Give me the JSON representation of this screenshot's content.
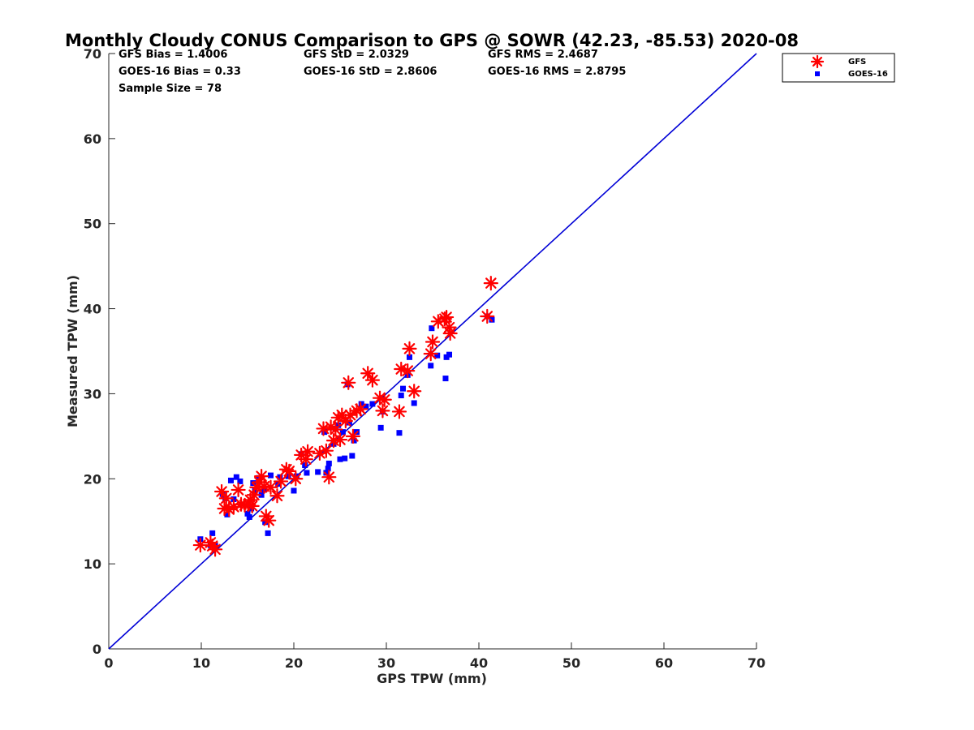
{
  "chart_data": {
    "type": "scatter",
    "title": "Monthly Cloudy CONUS Comparison to GPS @ SOWR (42.23, -85.53) 2020-08",
    "xlabel": "GPS TPW (mm)",
    "ylabel": "Measured TPW (mm)",
    "xlim": [
      0,
      70
    ],
    "ylim": [
      0,
      70
    ],
    "xticks": [
      "0",
      "10",
      "20",
      "30",
      "40",
      "50",
      "60",
      "70"
    ],
    "yticks": [
      "0",
      "10",
      "20",
      "30",
      "40",
      "50",
      "60",
      "70"
    ],
    "grid": false,
    "legend_position": "top-right (outside plot)",
    "stats": {
      "gfs_bias": "GFS Bias = 1.4006",
      "gfs_std": "GFS StD = 2.0329",
      "gfs_rms": "GFS RMS = 2.4687",
      "goes_bias": "GOES-16 Bias = 0.33",
      "goes_std": "GOES-16 StD = 2.8606",
      "goes_rms": "GOES-16 RMS = 2.8795",
      "sample_size": "Sample Size = 78"
    },
    "reference_line": {
      "x": [
        0,
        70
      ],
      "y": [
        0,
        70
      ],
      "color": "#0000d6"
    },
    "series": [
      {
        "name": "GFS",
        "marker": "asterisk",
        "color": "#ff0000",
        "points": [
          [
            9.9,
            12.2
          ],
          [
            11.0,
            12.5
          ],
          [
            11.2,
            12.1
          ],
          [
            11.5,
            11.7
          ],
          [
            12.2,
            18.5
          ],
          [
            12.5,
            16.5
          ],
          [
            12.7,
            17.7
          ],
          [
            13.0,
            16.4
          ],
          [
            13.5,
            16.7
          ],
          [
            14.0,
            18.7
          ],
          [
            14.3,
            17.0
          ],
          [
            14.7,
            16.9
          ],
          [
            15.1,
            17.0
          ],
          [
            15.3,
            17.5
          ],
          [
            15.5,
            16.8
          ],
          [
            15.7,
            18.1
          ],
          [
            16.0,
            19.0
          ],
          [
            16.3,
            19.6
          ],
          [
            16.5,
            20.3
          ],
          [
            16.8,
            19.1
          ],
          [
            17.0,
            15.6
          ],
          [
            17.3,
            15.1
          ],
          [
            17.5,
            19.0
          ],
          [
            18.2,
            18.0
          ],
          [
            18.6,
            19.7
          ],
          [
            19.2,
            21.1
          ],
          [
            19.5,
            20.9
          ],
          [
            20.2,
            20.0
          ],
          [
            20.8,
            22.8
          ],
          [
            21.3,
            22.3
          ],
          [
            21.5,
            23.2
          ],
          [
            22.8,
            23.0
          ],
          [
            23.2,
            25.9
          ],
          [
            23.5,
            23.3
          ],
          [
            23.8,
            20.2
          ],
          [
            24.0,
            26.1
          ],
          [
            24.3,
            24.5
          ],
          [
            24.5,
            25.8
          ],
          [
            24.8,
            27.2
          ],
          [
            25.0,
            24.6
          ],
          [
            25.2,
            27.5
          ],
          [
            25.6,
            26.8
          ],
          [
            25.9,
            31.3
          ],
          [
            26.1,
            27.5
          ],
          [
            26.4,
            25.0
          ],
          [
            26.8,
            28.0
          ],
          [
            27.2,
            28.2
          ],
          [
            28.0,
            32.4
          ],
          [
            28.5,
            31.6
          ],
          [
            29.3,
            29.5
          ],
          [
            29.6,
            28.0
          ],
          [
            29.8,
            29.3
          ],
          [
            31.4,
            27.9
          ],
          [
            31.6,
            32.9
          ],
          [
            32.3,
            32.7
          ],
          [
            32.5,
            35.3
          ],
          [
            33.0,
            30.3
          ],
          [
            34.8,
            34.7
          ],
          [
            35.0,
            36.1
          ],
          [
            35.6,
            38.5
          ],
          [
            36.3,
            38.8
          ],
          [
            36.5,
            39.0
          ],
          [
            36.8,
            37.8
          ],
          [
            36.9,
            37.1
          ],
          [
            40.9,
            39.1
          ],
          [
            41.3,
            43.0
          ]
        ]
      },
      {
        "name": "GOES-16",
        "marker": "square",
        "color": "#0000ff",
        "points": [
          [
            9.9,
            12.9
          ],
          [
            11.0,
            12.2
          ],
          [
            11.2,
            13.6
          ],
          [
            11.5,
            12.2
          ],
          [
            12.3,
            18.2
          ],
          [
            12.6,
            17.7
          ],
          [
            12.8,
            15.8
          ],
          [
            13.2,
            19.8
          ],
          [
            13.5,
            17.6
          ],
          [
            13.8,
            20.2
          ],
          [
            14.2,
            19.7
          ],
          [
            15.0,
            15.9
          ],
          [
            15.2,
            15.5
          ],
          [
            15.4,
            16.5
          ],
          [
            15.6,
            19.5
          ],
          [
            15.8,
            18.6
          ],
          [
            16.2,
            20.1
          ],
          [
            16.5,
            18.1
          ],
          [
            16.8,
            18.7
          ],
          [
            16.9,
            14.9
          ],
          [
            17.2,
            13.6
          ],
          [
            17.5,
            20.4
          ],
          [
            18.3,
            19.4
          ],
          [
            18.5,
            20.2
          ],
          [
            19.4,
            20.3
          ],
          [
            20.0,
            18.6
          ],
          [
            20.3,
            20.3
          ],
          [
            20.8,
            22.9
          ],
          [
            21.2,
            21.6
          ],
          [
            21.4,
            20.7
          ],
          [
            22.6,
            20.8
          ],
          [
            23.3,
            25.5
          ],
          [
            23.5,
            20.7
          ],
          [
            23.7,
            21.2
          ],
          [
            23.8,
            21.8
          ],
          [
            24.3,
            24.1
          ],
          [
            24.5,
            25.9
          ],
          [
            24.8,
            26.3
          ],
          [
            25.0,
            22.3
          ],
          [
            25.3,
            25.5
          ],
          [
            25.5,
            22.4
          ],
          [
            25.8,
            31.1
          ],
          [
            26.0,
            26.6
          ],
          [
            26.3,
            22.7
          ],
          [
            26.5,
            24.5
          ],
          [
            26.8,
            25.5
          ],
          [
            27.3,
            28.8
          ],
          [
            27.8,
            28.5
          ],
          [
            28.5,
            28.8
          ],
          [
            29.4,
            26.0
          ],
          [
            29.6,
            27.9
          ],
          [
            31.4,
            25.4
          ],
          [
            31.6,
            29.8
          ],
          [
            31.8,
            30.6
          ],
          [
            32.3,
            32.2
          ],
          [
            32.5,
            34.3
          ],
          [
            33.0,
            28.9
          ],
          [
            34.8,
            33.3
          ],
          [
            34.9,
            37.7
          ],
          [
            35.5,
            34.5
          ],
          [
            36.4,
            31.8
          ],
          [
            36.5,
            34.3
          ],
          [
            36.8,
            34.6
          ],
          [
            40.9,
            39.1
          ],
          [
            41.4,
            38.7
          ]
        ]
      }
    ]
  }
}
